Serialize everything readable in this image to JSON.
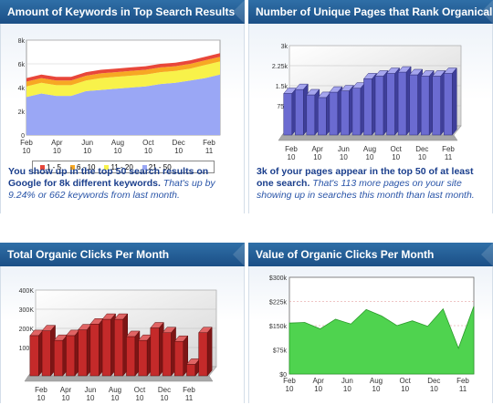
{
  "panels": [
    {
      "title": "Amount of Keywords in Top Search Results",
      "desc_bold": "You show up in the top 50 search results on Google for 8k different keywords.",
      "desc_italic": "That's up by 9.24% or 662 keywords from last month."
    },
    {
      "title": "Number of Unique Pages that Rank Organically",
      "desc_bold": "3k of your pages appear in the top 50 of at least one search.",
      "desc_italic": "That's 113 more pages on your site showing up in searches this month than last month."
    },
    {
      "title": "Total Organic Clicks Per Month"
    },
    {
      "title": "Value of Organic Clicks Per Month"
    }
  ],
  "legend": [
    {
      "label": "1 - 5",
      "color": "#e8473a"
    },
    {
      "label": "6 - 10",
      "color": "#f7a823"
    },
    {
      "label": "11 - 20",
      "color": "#f8f24a"
    },
    {
      "label": "21 - 50",
      "color": "#9aa7f5"
    }
  ],
  "chart_data": [
    {
      "type": "area",
      "xticks": [
        "Feb 10",
        "Apr 10",
        "Jun 10",
        "Aug 10",
        "Oct 10",
        "Dec 10",
        "Feb 11"
      ],
      "yticks": [
        "0",
        "2k",
        "4k",
        "6k",
        "8k"
      ],
      "ylim": [
        0,
        8000
      ],
      "series": [
        {
          "name": "21 - 50",
          "values": [
            3200,
            3500,
            3300,
            3300,
            3700,
            3800,
            3900,
            4000,
            4100,
            4300,
            4400,
            4600,
            4800,
            5100
          ]
        },
        {
          "name": "11 - 20",
          "values": [
            900,
            900,
            900,
            900,
            900,
            1000,
            1000,
            1000,
            1000,
            1000,
            1000,
            1000,
            1100,
            1100
          ]
        },
        {
          "name": "6 - 10",
          "values": [
            400,
            400,
            400,
            400,
            400,
            400,
            400,
            400,
            400,
            400,
            400,
            400,
            400,
            400
          ]
        },
        {
          "name": "1 - 5",
          "values": [
            300,
            300,
            300,
            300,
            300,
            300,
            300,
            300,
            300,
            300,
            300,
            300,
            300,
            300
          ]
        }
      ]
    },
    {
      "type": "bar",
      "xticks": [
        "Feb 10",
        "Apr 10",
        "Jun 10",
        "Aug 10",
        "Oct 10",
        "Dec 10",
        "Feb 11"
      ],
      "yticks": [
        "0",
        "750",
        "1.5k",
        "2.25k",
        "3k"
      ],
      "ylim": [
        0,
        3000
      ],
      "values": [
        1550,
        1700,
        1500,
        1400,
        1600,
        1650,
        1750,
        2100,
        2200,
        2300,
        2350,
        2250,
        2200,
        2200,
        2300
      ]
    },
    {
      "type": "bar",
      "xticks": [
        "Feb 10",
        "Apr 10",
        "Jun 10",
        "Aug 10",
        "Oct 10",
        "Dec 10",
        "Feb 11"
      ],
      "yticks": [
        "0",
        "100K",
        "200K",
        "300K",
        "400K"
      ],
      "ylim": [
        0,
        400000
      ],
      "values": [
        210000,
        235000,
        185000,
        210000,
        240000,
        270000,
        295000,
        295000,
        205000,
        185000,
        250000,
        225000,
        180000,
        60000,
        225000
      ]
    },
    {
      "type": "area",
      "xticks": [
        "Feb 10",
        "Apr 10",
        "Jun 10",
        "Aug 10",
        "Oct 10",
        "Dec 10",
        "Feb 11"
      ],
      "yticks": [
        "$0",
        "$75k",
        "$150k",
        "$225k",
        "$300k"
      ],
      "ylim": [
        0,
        300000
      ],
      "series": [
        {
          "name": "Value",
          "values": [
            158000,
            160000,
            140000,
            170000,
            155000,
            200000,
            180000,
            150000,
            165000,
            148000,
            202000,
            80000,
            210000
          ]
        }
      ]
    }
  ]
}
